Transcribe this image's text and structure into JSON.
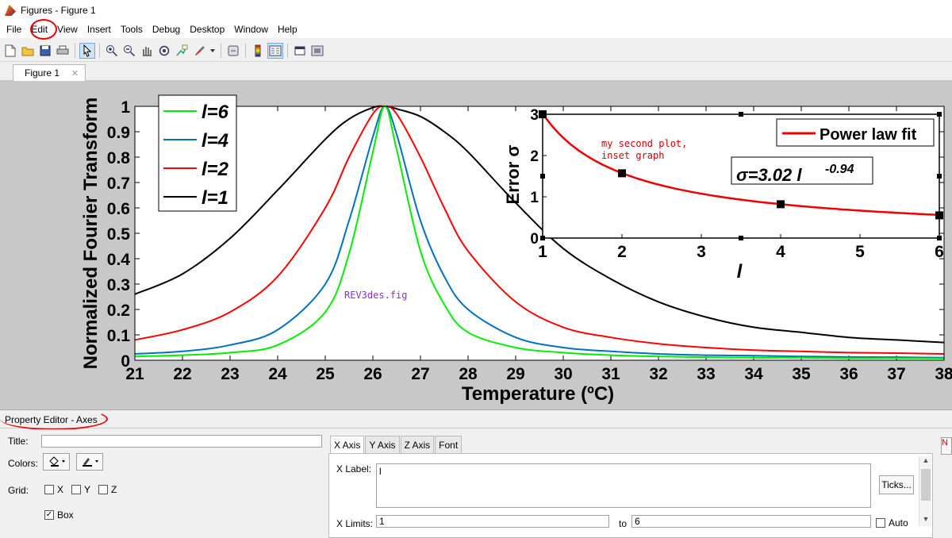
{
  "window": {
    "title": "Figures - Figure 1"
  },
  "menu": [
    "File",
    "Edit",
    "View",
    "Insert",
    "Tools",
    "Debug",
    "Desktop",
    "Window",
    "Help"
  ],
  "toolbar_icons": [
    "new-file-icon",
    "open-folder-icon",
    "save-icon",
    "print-icon",
    "pointer-icon",
    "zoom-in-icon",
    "zoom-out-icon",
    "pan-hand-icon",
    "rotate-icon",
    "data-cursor-icon",
    "brush-icon",
    "dropdown-arrow-icon",
    "link-icon",
    "colorbar-icon",
    "legend-icon",
    "hide-plot-tools-icon",
    "show-plot-tools-icon"
  ],
  "figure_tab": {
    "label": "Figure 1",
    "close": "✕"
  },
  "colors": {
    "green": "#00ee00",
    "blue": "#0072bd",
    "red": "#ff0000",
    "black": "#000000",
    "inset_red": "#ee0000",
    "note_red": "#cc0000",
    "note_purple": "#8a2be2",
    "annot_red": "#e00000"
  },
  "chart_data": [
    {
      "type": "line",
      "xlabel": "Temperature (ºC)",
      "ylabel": "Normalized Fourier Transform",
      "xlim": [
        21,
        38
      ],
      "ylim": [
        0,
        1
      ],
      "xticks": [
        "21",
        "22",
        "23",
        "24",
        "25",
        "26",
        "27",
        "28",
        "29",
        "30",
        "31",
        "32",
        "33",
        "34",
        "35",
        "36",
        "37",
        "38"
      ],
      "yticks": [
        "0",
        "0.1",
        "0.2",
        "0.3",
        "0.4",
        "0.5",
        "0.6",
        "0.7",
        "0.8",
        "0.9",
        "1"
      ],
      "legend": {
        "position": "top-left",
        "entries": [
          "l=6",
          "l=4",
          "l=2",
          "l=1"
        ]
      },
      "annotation": "REV3des.fig",
      "series": [
        {
          "name": "l=6",
          "color": "green",
          "x": [
            21,
            22,
            23,
            24,
            25,
            25.5,
            26,
            26.25,
            26.5,
            27,
            27.5,
            28,
            29,
            30,
            31,
            32,
            33,
            34,
            35,
            36,
            37,
            38
          ],
          "y": [
            0.015,
            0.02,
            0.03,
            0.06,
            0.19,
            0.42,
            0.82,
            1.0,
            0.83,
            0.43,
            0.22,
            0.11,
            0.05,
            0.03,
            0.02,
            0.015,
            0.012,
            0.01,
            0.01,
            0.008,
            0.008,
            0.007
          ]
        },
        {
          "name": "l=4",
          "color": "blue",
          "x": [
            21,
            22,
            23,
            24,
            25,
            25.5,
            26,
            26.25,
            26.5,
            27,
            27.5,
            28,
            29,
            30,
            31,
            32,
            33,
            34,
            35,
            36,
            37,
            38
          ],
          "y": [
            0.025,
            0.035,
            0.06,
            0.12,
            0.3,
            0.55,
            0.88,
            1.0,
            0.89,
            0.55,
            0.33,
            0.2,
            0.09,
            0.05,
            0.035,
            0.025,
            0.02,
            0.018,
            0.015,
            0.013,
            0.012,
            0.01
          ]
        },
        {
          "name": "l=2",
          "color": "red",
          "x": [
            21,
            22,
            23,
            24,
            25,
            25.5,
            26,
            26.25,
            26.5,
            27,
            27.5,
            28,
            29,
            30,
            31,
            32,
            33,
            34,
            35,
            36,
            37,
            38
          ],
          "y": [
            0.08,
            0.12,
            0.19,
            0.33,
            0.6,
            0.8,
            0.97,
            1.0,
            0.97,
            0.8,
            0.6,
            0.43,
            0.23,
            0.13,
            0.09,
            0.065,
            0.05,
            0.04,
            0.035,
            0.03,
            0.028,
            0.025
          ]
        },
        {
          "name": "l=1",
          "color": "black",
          "x": [
            21,
            22,
            23,
            24,
            25,
            25.5,
            26,
            26.25,
            26.5,
            27,
            27.5,
            28,
            29,
            30,
            31,
            32,
            33,
            34,
            35,
            36,
            37,
            38
          ],
          "y": [
            0.26,
            0.34,
            0.48,
            0.67,
            0.87,
            0.95,
            0.995,
            1.0,
            0.99,
            0.96,
            0.9,
            0.82,
            0.62,
            0.44,
            0.32,
            0.23,
            0.17,
            0.13,
            0.11,
            0.09,
            0.08,
            0.07
          ]
        }
      ]
    },
    {
      "type": "line",
      "xlabel": "l",
      "ylabel": "Error σ",
      "xlim": [
        1,
        6
      ],
      "ylim": [
        0,
        3
      ],
      "xticks": [
        "1",
        "2",
        "3",
        "4",
        "5",
        "6"
      ],
      "yticks": [
        "0",
        "1",
        "2",
        "3"
      ],
      "legend": {
        "position": "top-right",
        "entries": [
          "Power law fit"
        ]
      },
      "fit_label": {
        "base": "σ=3.02 l",
        "exponent": "-0.94"
      },
      "note": [
        "my second plot,",
        "inset graph"
      ],
      "points": {
        "x": [
          1,
          2,
          4,
          6
        ],
        "y": [
          3.0,
          1.57,
          0.82,
          0.55
        ]
      },
      "fit": {
        "coef": 3.02,
        "exponent": -0.94
      }
    }
  ],
  "property_editor": {
    "header": "Property Editor - Axes",
    "title_label": "Title:",
    "title_value": "",
    "colors_label": "Colors:",
    "grid_label": "Grid:",
    "grid_x": "X",
    "grid_y": "Y",
    "grid_z": "Z",
    "box_label": "Box",
    "box_checked": "✓",
    "tabs": [
      "X Axis",
      "Y Axis",
      "Z Axis",
      "Font"
    ],
    "xlabel_label": "X Label:",
    "xlabel_value": "l",
    "xlimits_label": "X Limits:",
    "xlim_min": "1",
    "xlim_to": "to",
    "xlim_max": "6",
    "auto_label": "Auto",
    "ticks_button": "Ticks...",
    "side_btn": "N"
  }
}
